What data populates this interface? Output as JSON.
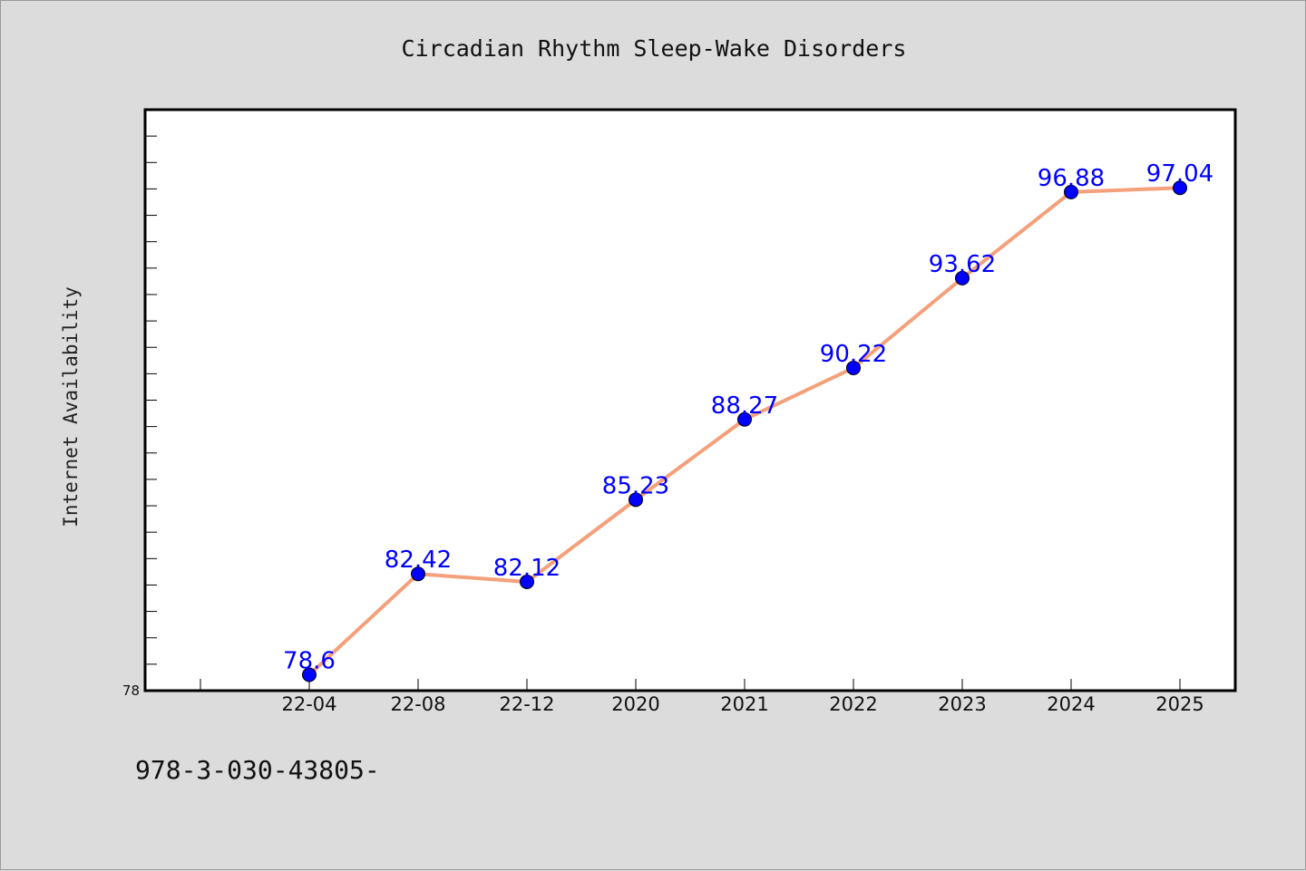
{
  "footer_text": "978-3-030-43805-",
  "colors": {
    "background": "#dcdcdc",
    "plot_background": "#ffffff",
    "line": "#f4a07a",
    "marker": "#0000ff",
    "data_label": "#0000ff",
    "axis": "#000000"
  },
  "chart_data": {
    "type": "line",
    "title": "Circadian Rhythm Sleep-Wake Disorders",
    "xlabel": "",
    "ylabel": "Internet Availability",
    "categories": [
      "22-04",
      "22-08",
      "22-12",
      "2020",
      "2021",
      "2022",
      "2023",
      "2024",
      "2025"
    ],
    "series": [
      {
        "values": [
          78.6,
          82.42,
          82.12,
          85.23,
          88.27,
          90.22,
          93.62,
          96.88,
          97.04
        ],
        "value_labels": [
          "78.6",
          "82.42",
          "82.12",
          "85.23",
          "88.27",
          "90.22",
          "93.62",
          "96.88",
          "97.04"
        ]
      }
    ],
    "ylim": [
      78,
      100
    ],
    "y_tick_labels": [
      "78"
    ],
    "y_minor_tick_step": 1,
    "grid": false,
    "legend": "none"
  }
}
